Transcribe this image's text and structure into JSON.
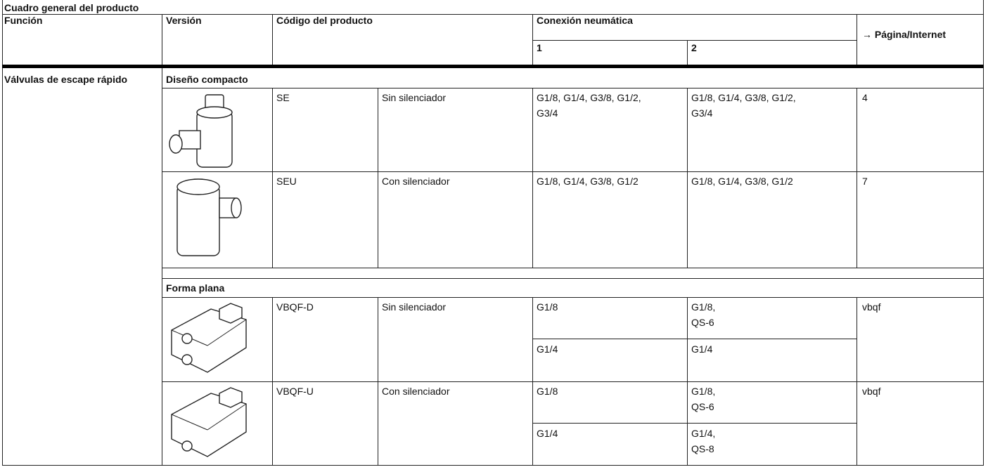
{
  "header": {
    "title": "Cuadro general del producto",
    "columns": [
      "Función",
      "Versión",
      "Código del producto",
      "Conexión neumática",
      "→ Página/Internet"
    ],
    "subcolumns": [
      "1",
      "2"
    ]
  },
  "table": {
    "function": "Válvulas de escape rápido",
    "groups": [
      {
        "name": "Diseño compacto",
        "rows": [
          {
            "code": "SE",
            "description": "Sin silenciador",
            "connections": [
              {
                "port_1": "G1/8, G1/4, G3/8, G1/2,\nG3/4",
                "port_2": "G1/8, G1/4, G3/8, G1/2,\nG3/4"
              }
            ],
            "page": "4"
          },
          {
            "code": "SEU",
            "description": "Con silenciador",
            "connections": [
              {
                "port_1": "G1/8, G1/4, G3/8, G1/2",
                "port_2": "G1/8, G1/4, G3/8, G1/2"
              }
            ],
            "page": "7"
          }
        ]
      },
      {
        "name": "Forma plana",
        "rows": [
          {
            "code": "VBQF-D",
            "description": "Sin silenciador",
            "connections": [
              {
                "port_1": "G1/8",
                "port_2": "G1/8,\nQS-6"
              },
              {
                "port_1": "G1/4",
                "port_2": "G1/4"
              }
            ],
            "page": "vbqf"
          },
          {
            "code": "VBQF-U",
            "description": "Con silenciador",
            "connections": [
              {
                "port_1": "G1/8",
                "port_2": "G1/8,\nQS-6"
              },
              {
                "port_1": "G1/4",
                "port_2": "G1/4,\nQS-8"
              }
            ],
            "page": "vbqf"
          }
        ]
      }
    ]
  }
}
